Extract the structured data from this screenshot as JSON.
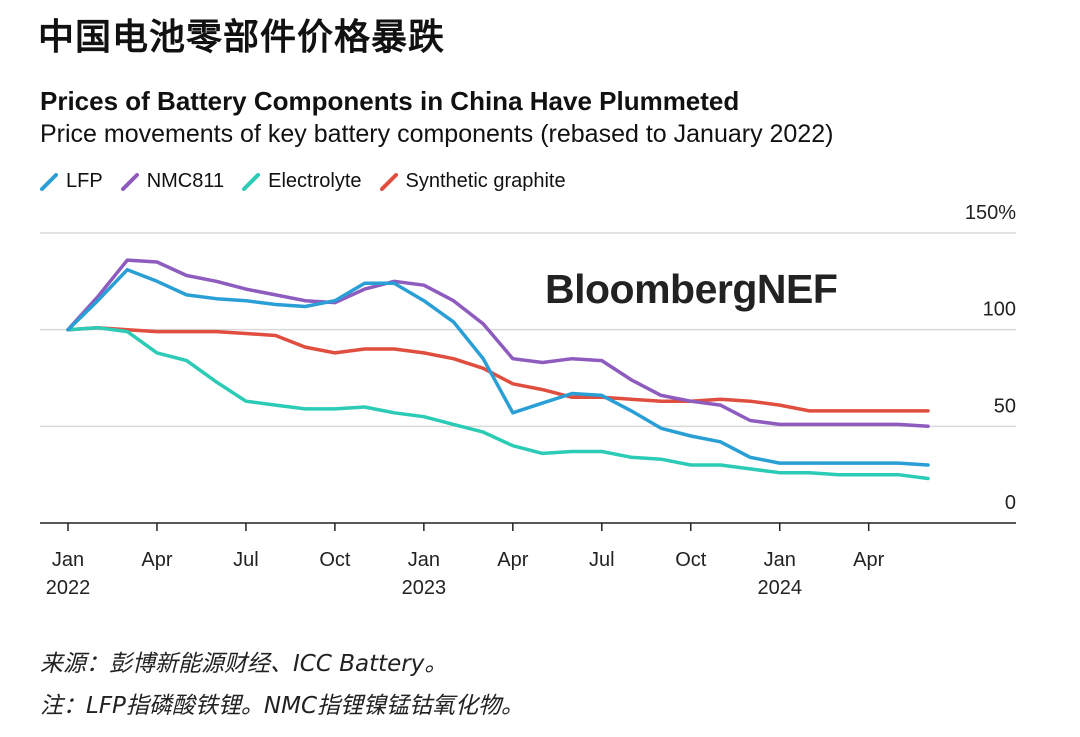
{
  "headline": "中国电池零部件价格暴跌",
  "footer": {
    "source": "来源：彭博新能源财经、ICC Battery。",
    "note": "注：LFP指磷酸铁锂。NMC指锂镍锰钴氧化物。"
  },
  "chart_data": {
    "type": "line",
    "title": "Prices of Battery Components in China Have Plummeted",
    "subtitle": "Price movements of key battery components (rebased to January 2022)",
    "watermark": "BloombergNEF",
    "ylim": [
      0,
      150
    ],
    "y_ticks": [
      0,
      50,
      100,
      150
    ],
    "y_tick_labels": [
      "0",
      "50",
      "100",
      "150%"
    ],
    "x_tick_labels": [
      {
        "line1": "Jan",
        "line2": "2022",
        "index": 0
      },
      {
        "line1": "Apr",
        "line2": "",
        "index": 3
      },
      {
        "line1": "Jul",
        "line2": "",
        "index": 6
      },
      {
        "line1": "Oct",
        "line2": "",
        "index": 9
      },
      {
        "line1": "Jan",
        "line2": "2023",
        "index": 12
      },
      {
        "line1": "Apr",
        "line2": "",
        "index": 15
      },
      {
        "line1": "Jul",
        "line2": "",
        "index": 18
      },
      {
        "line1": "Oct",
        "line2": "",
        "index": 21
      },
      {
        "line1": "Jan",
        "line2": "2024",
        "index": 24
      },
      {
        "line1": "Apr",
        "line2": "",
        "index": 27
      }
    ],
    "x": [
      "2022-01",
      "2022-02",
      "2022-03",
      "2022-04",
      "2022-05",
      "2022-06",
      "2022-07",
      "2022-08",
      "2022-09",
      "2022-10",
      "2022-11",
      "2022-12",
      "2023-01",
      "2023-02",
      "2023-03",
      "2023-04",
      "2023-05",
      "2023-06",
      "2023-07",
      "2023-08",
      "2023-09",
      "2023-10",
      "2023-11",
      "2023-12",
      "2024-01",
      "2024-02",
      "2024-03",
      "2024-04",
      "2024-05",
      "2024-06"
    ],
    "grid": true,
    "legend_position": "top-left",
    "series": [
      {
        "name": "LFP",
        "color": "#2a9fd6",
        "values": [
          100,
          115,
          131,
          125,
          118,
          116,
          115,
          113,
          112,
          115,
          124,
          124,
          115,
          104,
          85,
          57,
          62,
          67,
          66,
          58,
          49,
          45,
          42,
          34,
          31,
          31,
          31,
          31,
          31,
          30
        ]
      },
      {
        "name": "NMC811",
        "color": "#8e5bbf",
        "values": [
          100,
          117,
          136,
          135,
          128,
          125,
          121,
          118,
          115,
          114,
          121,
          125,
          123,
          115,
          103,
          85,
          83,
          85,
          84,
          74,
          66,
          63,
          61,
          53,
          51,
          51,
          51,
          51,
          51,
          50
        ]
      },
      {
        "name": "Electrolyte",
        "color": "#2bcbb5",
        "values": [
          100,
          101,
          99,
          88,
          84,
          73,
          63,
          61,
          59,
          59,
          60,
          57,
          55,
          51,
          47,
          40,
          36,
          37,
          37,
          34,
          33,
          30,
          30,
          28,
          26,
          26,
          25,
          25,
          25,
          23
        ]
      },
      {
        "name": "Synthetic graphite",
        "color": "#e04e3f",
        "values": [
          100,
          101,
          100,
          99,
          99,
          99,
          98,
          97,
          91,
          88,
          90,
          90,
          88,
          85,
          80,
          72,
          69,
          65,
          65,
          64,
          63,
          63,
          64,
          63,
          61,
          58,
          58,
          58,
          58,
          58
        ]
      }
    ]
  }
}
